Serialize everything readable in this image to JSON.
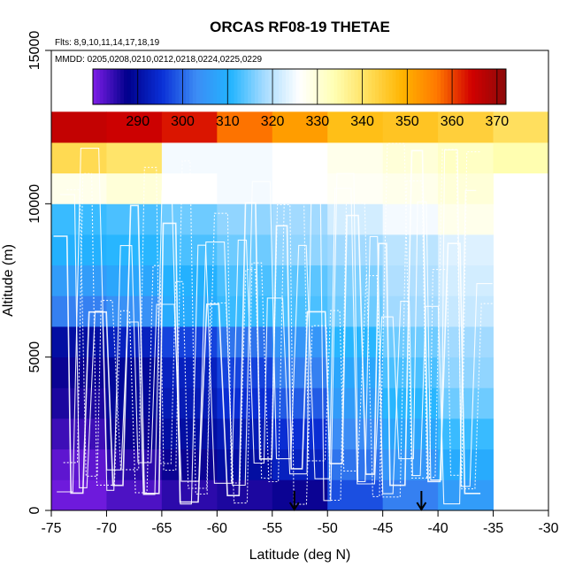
{
  "chart_data": {
    "type": "heatmap",
    "title": "ORCAS RF08-19 THETAE",
    "annotations": {
      "flights": "Flts: 8,9,10,11,14,17,18,19",
      "dates": "MMDD: 0205,0208,0210,0212,0218,0224,0225,0229"
    },
    "xlabel": "Latitude (deg N)",
    "ylabel": "Altitude (m)",
    "xlim": [
      -75,
      -30
    ],
    "ylim": [
      0,
      15000
    ],
    "x_ticks": [
      -75,
      -70,
      -65,
      -60,
      -55,
      -50,
      -45,
      -40,
      -35,
      -30
    ],
    "y_ticks": [
      0,
      5000,
      10000,
      15000
    ],
    "colorbar": {
      "range": [
        280,
        372
      ],
      "ticks": [
        290,
        300,
        310,
        320,
        330,
        340,
        350,
        360,
        370
      ],
      "palette": [
        "#7f1ee8",
        "#00008b",
        "#0a2fd6",
        "#3c8cf5",
        "#22b4ff",
        "#a8dcff",
        "#ffffff",
        "#ffffb4",
        "#ffde5a",
        "#ffb400",
        "#ff7800",
        "#d20000",
        "#8b0a0a"
      ]
    },
    "lat_edges": [
      -75,
      -70,
      -65,
      -60,
      -55,
      -50,
      -45,
      -40,
      -35,
      -30
    ],
    "alt_bin_size": 1000,
    "rows": [
      [
        281,
        283,
        285,
        286,
        287,
        298,
        302,
        306,
        null
      ],
      [
        282,
        285,
        287,
        290,
        293,
        301,
        305,
        309,
        null
      ],
      [
        284,
        287,
        290,
        292,
        295,
        303,
        308,
        312,
        null
      ],
      [
        286,
        289,
        292,
        295,
        299,
        306,
        311,
        315,
        null
      ],
      [
        287,
        289,
        293,
        297,
        302,
        308,
        313,
        317,
        null
      ],
      [
        290,
        293,
        297,
        301,
        305,
        311,
        315,
        318,
        null
      ],
      [
        302,
        304,
        309,
        312,
        313,
        315,
        318,
        321,
        null
      ],
      [
        306,
        308,
        310,
        313,
        314,
        316,
        319,
        322,
        null
      ],
      [
        310,
        311,
        313,
        315,
        317,
        318,
        320,
        323,
        null
      ],
      [
        312,
        313,
        315,
        317,
        318,
        322,
        325,
        328,
        null
      ],
      [
        328,
        330,
        326,
        325,
        326,
        327,
        328,
        330,
        null
      ],
      [
        342,
        340,
        325,
        325,
        326,
        328,
        330,
        332,
        334
      ],
      [
        366,
        365,
        363,
        357,
        352,
        347,
        346,
        344,
        341
      ]
    ],
    "arrows_lat": [
      -53,
      -41.5
    ]
  }
}
